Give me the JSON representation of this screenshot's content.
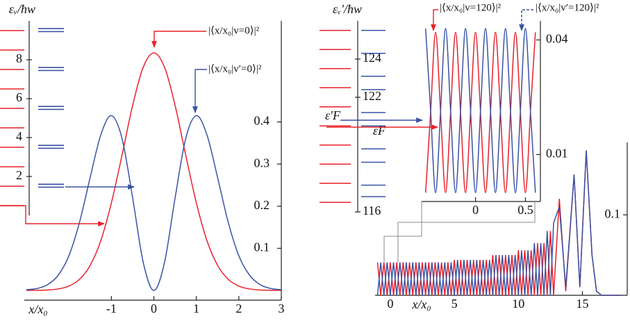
{
  "chart_data": [
    {
      "type": "levels",
      "ylabel": "εᵥ/ħw",
      "ylim": [
        0,
        10
      ],
      "yticks": [
        2,
        4,
        6,
        8
      ],
      "series": [
        {
          "color": "#e8202a",
          "values": [
            0.5,
            1.5,
            2.5,
            3.5,
            4.5,
            5.5,
            6.5,
            7.5,
            8.5,
            9.5
          ]
        },
        {
          "color": "#3a52a4",
          "values": [
            1.45,
            1.6,
            3.45,
            3.6,
            5.45,
            5.6,
            7.45,
            7.6,
            9.45,
            9.6
          ]
        }
      ]
    },
    {
      "type": "line",
      "xlabel": "x/x₀",
      "annotations": [
        "|⟨x/x₀|v=0⟩|²",
        "|⟨x/x₀|v′=0⟩|²"
      ],
      "xlim": [
        -3.05,
        3
      ],
      "xticks": [
        -1,
        0,
        1,
        2,
        3
      ],
      "ylim": [
        0,
        0.64
      ],
      "yticks": [
        0.1,
        0.2,
        0.3,
        0.4
      ],
      "x": [
        -3,
        -2.75,
        -2.5,
        -2.25,
        -2,
        -1.75,
        -1.5,
        -1.25,
        -1,
        -0.75,
        -0.5,
        -0.25,
        0,
        0.25,
        0.5,
        0.75,
        1,
        1.25,
        1.5,
        1.75,
        2,
        2.25,
        2.5,
        2.75,
        3
      ],
      "series": [
        {
          "color": "#e8202a",
          "values": [
            0.0001,
            0.0003,
            0.0011,
            0.0036,
            0.0103,
            0.0264,
            0.0595,
            0.118,
            0.208,
            0.321,
            0.439,
            0.53,
            0.564,
            0.53,
            0.439,
            0.321,
            0.208,
            0.118,
            0.0595,
            0.0264,
            0.0103,
            0.0036,
            0.0011,
            0.0003,
            0.0001
          ]
        },
        {
          "color": "#3a52a4",
          "values": [
            0.0018,
            0.0045,
            0.0138,
            0.0365,
            0.0824,
            0.162,
            0.268,
            0.369,
            0.415,
            0.361,
            0.22,
            0.0663,
            0,
            0.0663,
            0.22,
            0.361,
            0.415,
            0.369,
            0.268,
            0.162,
            0.0824,
            0.0365,
            0.0138,
            0.0045,
            0.0018
          ]
        }
      ]
    },
    {
      "type": "levels",
      "ylabel": "εᵥ′/ħw",
      "annotations": [
        "ε′F",
        "εF"
      ],
      "ylim": [
        116,
        126
      ],
      "yticks": [
        116,
        122,
        124
      ],
      "series": [
        {
          "color": "#e8202a",
          "values": [
            116.5,
            117.5,
            118.5,
            119.5,
            120.5,
            121.5,
            122.5,
            123.5,
            124.5,
            125.5
          ]
        },
        {
          "color": "#3a52a4",
          "values": [
            116.8,
            117.4,
            118.6,
            119.3,
            120.5,
            121.2,
            122.4,
            123.1,
            124.3,
            125.5
          ]
        }
      ]
    },
    {
      "type": "line",
      "annotations": [
        "|⟨x/x₀|v=120⟩|²",
        "|⟨x/x₀|v′=120⟩|²"
      ],
      "xlim": [
        -0.54,
        0.65
      ],
      "xticks": [
        0,
        0.5
      ],
      "ylim": [
        -0.0023,
        0.045
      ],
      "yticks": [
        0.01,
        0.04
      ],
      "x": [
        -0.5,
        -0.45,
        -0.4,
        -0.35,
        -0.3,
        -0.25,
        -0.2,
        -0.15,
        -0.1,
        -0.05,
        0,
        0.05,
        0.1,
        0.15,
        0.2,
        0.25,
        0.3,
        0.35,
        0.4,
        0.45,
        0.5,
        0.55,
        0.6
      ],
      "series": [
        {
          "color": "#e8202a",
          "values": [
            0,
            0.021,
            0.042,
            0.021,
            0,
            0.021,
            0.042,
            0.021,
            0,
            0.021,
            0.042,
            0.021,
            0,
            0.021,
            0.042,
            0.021,
            0,
            0.021,
            0.042,
            0.021,
            0,
            0.021,
            0.042
          ]
        },
        {
          "color": "#3a52a4",
          "values": [
            0.043,
            0.0215,
            0,
            0.0215,
            0.043,
            0.0215,
            0,
            0.0215,
            0.043,
            0.0215,
            0,
            0.0215,
            0.043,
            0.0215,
            0,
            0.0215,
            0.043,
            0.0215,
            0,
            0.0215,
            0.043,
            0.0215,
            0
          ]
        }
      ]
    },
    {
      "type": "line",
      "xlabel": "x/x₀",
      "xlim": [
        -1.19,
        18.5
      ],
      "xticks": [
        0,
        5,
        10,
        15
      ],
      "ylim": [
        0,
        0.19
      ],
      "yticks": [
        0.1
      ],
      "x": [
        -1,
        -0.75,
        -0.5,
        -0.25,
        0,
        0.25,
        0.5,
        0.75,
        1,
        1.25,
        1.5,
        1.75,
        2,
        2.25,
        2.5,
        2.75,
        3,
        3.25,
        3.5,
        3.75,
        4,
        4.25,
        4.5,
        4.75,
        5,
        5.25,
        5.5,
        5.75,
        6,
        6.25,
        6.5,
        6.75,
        7,
        7.25,
        7.5,
        7.75,
        8,
        8.25,
        8.5,
        8.75,
        9,
        9.25,
        9.5,
        9.75,
        10,
        10.25,
        10.5,
        10.75,
        11,
        11.25,
        11.5,
        11.75,
        12,
        12.25,
        12.5,
        12.75,
        13.2,
        13.7,
        14.35,
        14.8,
        15.3,
        15.75,
        16.1,
        16.5,
        17,
        18
      ],
      "series": [
        {
          "color": "#e8202a",
          "values": [
            0.041,
            0,
            0.041,
            0,
            0.041,
            0,
            0.041,
            0,
            0.041,
            0,
            0.041,
            0,
            0.041,
            0,
            0.041,
            0,
            0.041,
            0,
            0.041,
            0,
            0.041,
            0,
            0.041,
            0,
            0.044,
            0,
            0.044,
            0,
            0.044,
            0,
            0.044,
            0,
            0.044,
            0,
            0.044,
            0,
            0.05,
            0,
            0.05,
            0,
            0.05,
            0,
            0.05,
            0,
            0.056,
            0,
            0.056,
            0,
            0.056,
            0,
            0.065,
            0,
            0.065,
            0,
            0.08,
            0,
            0.12,
            0.005,
            0.15,
            0.01,
            0.18,
            0.05,
            0.005,
            0,
            0,
            0
          ]
        },
        {
          "color": "#3a52a4",
          "values": [
            0,
            0.041,
            0,
            0.041,
            0,
            0.041,
            0,
            0.041,
            0,
            0.041,
            0,
            0.041,
            0,
            0.041,
            0,
            0.041,
            0,
            0.041,
            0,
            0.041,
            0,
            0.041,
            0,
            0.041,
            0,
            0.044,
            0,
            0.044,
            0,
            0.044,
            0,
            0.044,
            0,
            0.044,
            0,
            0.044,
            0,
            0.05,
            0,
            0.05,
            0,
            0.05,
            0,
            0.05,
            0,
            0.056,
            0,
            0.056,
            0,
            0.065,
            0,
            0.065,
            0,
            0.08,
            0,
            0.09,
            0.11,
            0.01,
            0.15,
            0.01,
            0.18,
            0.05,
            0.005,
            0,
            0,
            0
          ]
        }
      ]
    }
  ]
}
